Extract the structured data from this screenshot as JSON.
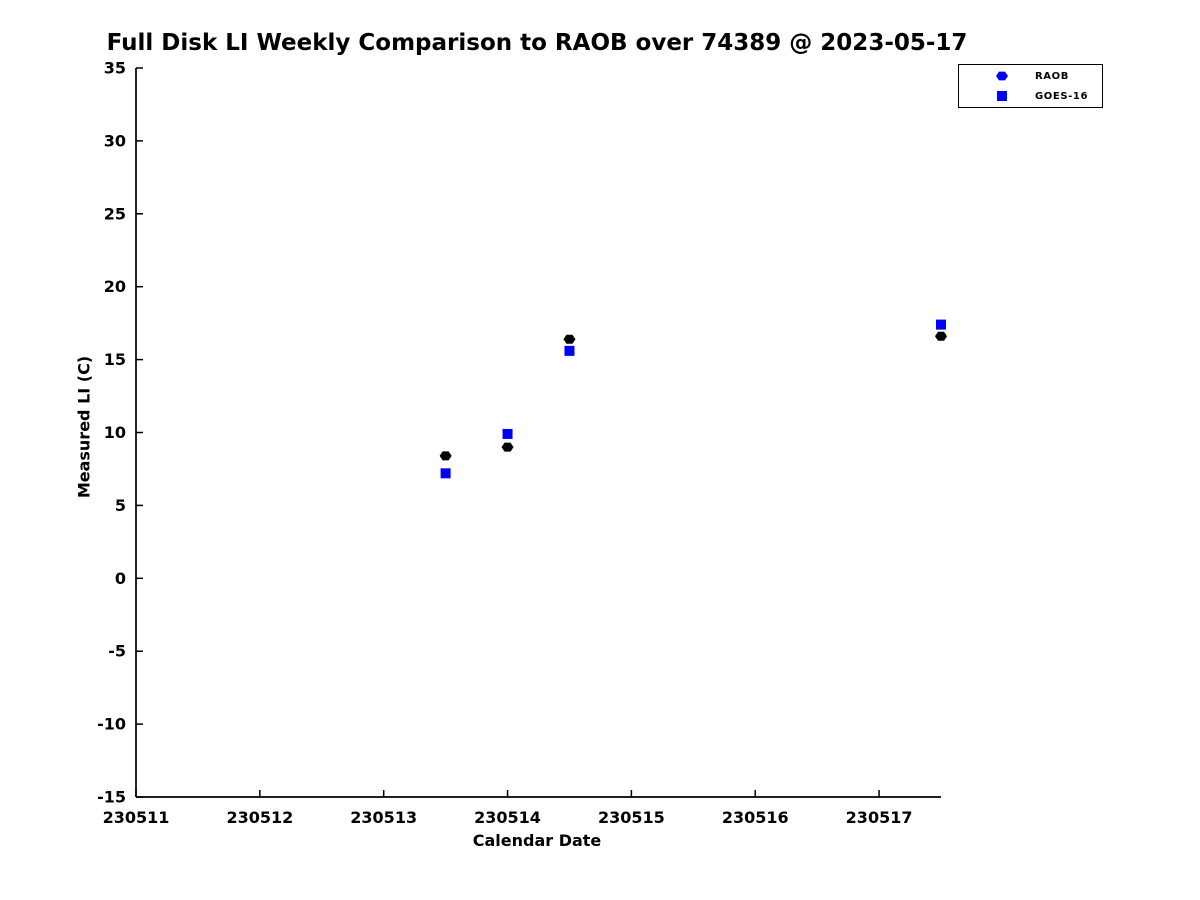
{
  "colors": {
    "axis": "#000000",
    "text": "#000000",
    "raob_plot_marker": "#000000",
    "goes16_plot_marker": "#0000ff",
    "legend_marker_blue": "#0000ff",
    "background": "#ffffff"
  },
  "chart_data": {
    "type": "scatter",
    "title": "Full Disk LI Weekly Comparison to RAOB over 74389 @ 2023-05-17",
    "xlabel": "Calendar Date",
    "ylabel": "Measured LI (C)",
    "xlim": [
      230511,
      230517.5
    ],
    "ylim": [
      -15,
      35
    ],
    "x_ticks": [
      230511,
      230512,
      230513,
      230514,
      230515,
      230516,
      230517
    ],
    "y_ticks": [
      35,
      30,
      25,
      20,
      15,
      10,
      5,
      0,
      -5,
      -10,
      -15
    ],
    "grid": false,
    "axis_color": "#000000",
    "text_color": "#000000",
    "legend": {
      "position": "top-right",
      "items": [
        {
          "label": "RAOB",
          "marker": "hexagon",
          "color": "#0000ff"
        },
        {
          "label": "GOES-16",
          "marker": "square",
          "color": "#0000ff"
        }
      ]
    },
    "series": [
      {
        "name": "RAOB",
        "marker": "hexagon",
        "color": "#000000",
        "points": [
          [
            230513.5,
            8.4
          ],
          [
            230514.0,
            9.0
          ],
          [
            230514.5,
            16.4
          ],
          [
            230517.5,
            16.6
          ]
        ]
      },
      {
        "name": "GOES-16",
        "marker": "square",
        "color": "#0000ff",
        "points": [
          [
            230513.5,
            7.2
          ],
          [
            230514.0,
            9.9
          ],
          [
            230514.5,
            15.6
          ],
          [
            230517.5,
            17.4
          ]
        ]
      }
    ]
  }
}
